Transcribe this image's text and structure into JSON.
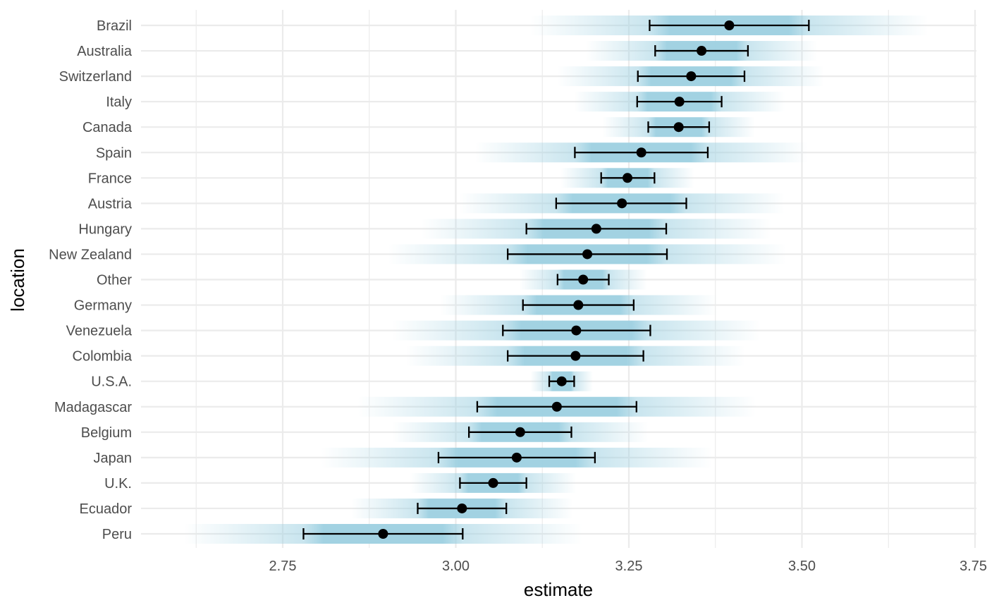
{
  "chart_data": {
    "type": "scatter",
    "xlabel": "estimate",
    "ylabel": "location",
    "xlim": [
      2.57,
      3.76
    ],
    "x_ticks": [
      "2.75",
      "3.00",
      "3.25",
      "3.50",
      "3.75"
    ],
    "x_tick_values": [
      2.75,
      3.0,
      3.25,
      3.5,
      3.75
    ],
    "grid": true,
    "colors": {
      "band": "#9dd0e1",
      "point": "#000000",
      "grid": "#ebebeb"
    },
    "series": [
      {
        "location": "Brazil",
        "estimate": 3.395,
        "lower": 3.28,
        "upper": 3.51
      },
      {
        "location": "Australia",
        "estimate": 3.355,
        "lower": 3.288,
        "upper": 3.422
      },
      {
        "location": "Switzerland",
        "estimate": 3.34,
        "lower": 3.263,
        "upper": 3.417
      },
      {
        "location": "Italy",
        "estimate": 3.323,
        "lower": 3.262,
        "upper": 3.384
      },
      {
        "location": "Canada",
        "estimate": 3.322,
        "lower": 3.278,
        "upper": 3.366
      },
      {
        "location": "Spain",
        "estimate": 3.268,
        "lower": 3.172,
        "upper": 3.364
      },
      {
        "location": "France",
        "estimate": 3.248,
        "lower": 3.21,
        "upper": 3.287
      },
      {
        "location": "Austria",
        "estimate": 3.24,
        "lower": 3.145,
        "upper": 3.333
      },
      {
        "location": "Hungary",
        "estimate": 3.203,
        "lower": 3.102,
        "upper": 3.304
      },
      {
        "location": "New Zealand",
        "estimate": 3.19,
        "lower": 3.075,
        "upper": 3.305
      },
      {
        "location": "Other",
        "estimate": 3.184,
        "lower": 3.147,
        "upper": 3.221
      },
      {
        "location": "Germany",
        "estimate": 3.177,
        "lower": 3.097,
        "upper": 3.257
      },
      {
        "location": "Venezuela",
        "estimate": 3.174,
        "lower": 3.068,
        "upper": 3.281
      },
      {
        "location": "Colombia",
        "estimate": 3.173,
        "lower": 3.075,
        "upper": 3.271
      },
      {
        "location": "U.S.A.",
        "estimate": 3.153,
        "lower": 3.135,
        "upper": 3.171
      },
      {
        "location": "Madagascar",
        "estimate": 3.146,
        "lower": 3.031,
        "upper": 3.261
      },
      {
        "location": "Belgium",
        "estimate": 3.093,
        "lower": 3.019,
        "upper": 3.167
      },
      {
        "location": "Japan",
        "estimate": 3.088,
        "lower": 2.975,
        "upper": 3.201
      },
      {
        "location": "U.K.",
        "estimate": 3.054,
        "lower": 3.006,
        "upper": 3.102
      },
      {
        "location": "Ecuador",
        "estimate": 3.009,
        "lower": 2.945,
        "upper": 3.073
      },
      {
        "location": "Peru",
        "estimate": 2.895,
        "lower": 2.78,
        "upper": 3.01
      }
    ]
  }
}
